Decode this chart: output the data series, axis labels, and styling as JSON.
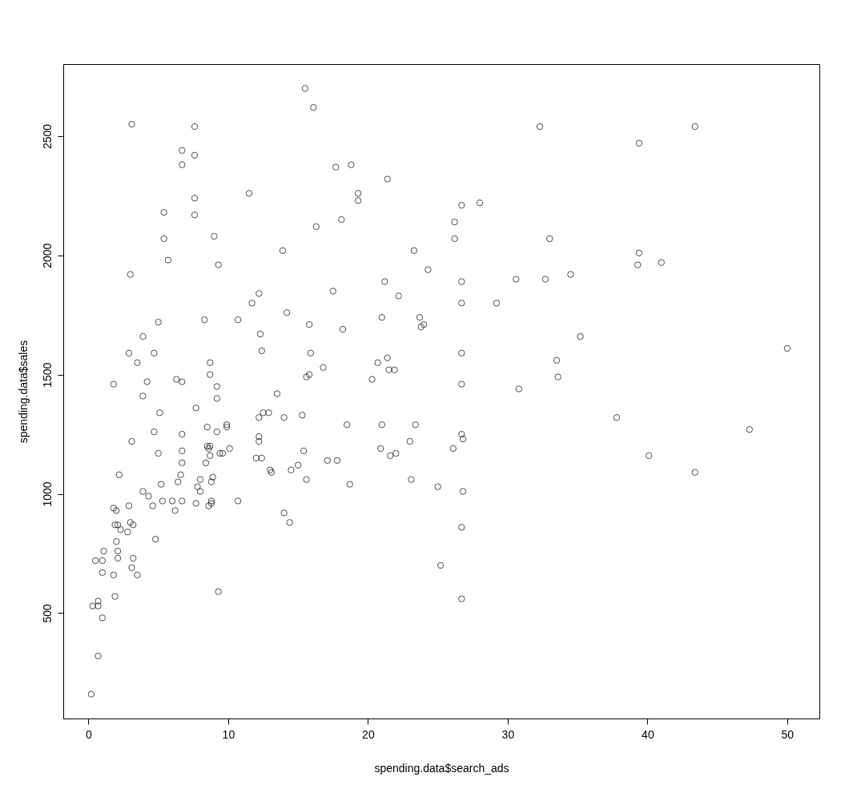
{
  "chart_data": {
    "type": "scatter",
    "xlabel": "spending.data$search_ads",
    "ylabel": "spending.data$sales",
    "marker": "circle",
    "grid": false,
    "xlim": [
      -1.8,
      52.3
    ],
    "ylim": [
      58,
      2802
    ],
    "xticks": [
      0,
      10,
      20,
      30,
      40,
      50
    ],
    "yticks": [
      500,
      1000,
      1500,
      2000,
      2500
    ],
    "series": [
      {
        "color": "#000000",
        "x": [
          0.2,
          0.3,
          0.7,
          0.7,
          0.5,
          0.7,
          1.0,
          1.0,
          1.1,
          1.0,
          1.8,
          1.8,
          1.9,
          1.8,
          1.9,
          2.0,
          2.1,
          2.0,
          2.1,
          2.1,
          2.3,
          2.2,
          2.8,
          2.9,
          2.9,
          3.0,
          3.2,
          3.1,
          3.2,
          3.1,
          3.0,
          3.1,
          3.5,
          3.5,
          3.9,
          3.9,
          3.9,
          4.2,
          4.3,
          4.6,
          4.7,
          4.7,
          4.8,
          5.0,
          5.0,
          5.1,
          5.2,
          5.3,
          5.4,
          5.4,
          5.7,
          6.0,
          6.2,
          6.4,
          6.3,
          6.6,
          6.7,
          6.7,
          6.7,
          6.7,
          6.7,
          6.7,
          6.7,
          7.6,
          7.6,
          7.6,
          7.6,
          7.7,
          7.7,
          7.8,
          8.0,
          8.0,
          8.3,
          8.4,
          8.5,
          8.5,
          8.6,
          8.7,
          8.7,
          8.7,
          8.7,
          8.6,
          8.8,
          8.8,
          8.8,
          8.9,
          9.0,
          9.2,
          9.2,
          9.2,
          9.3,
          9.3,
          9.4,
          9.6,
          9.9,
          9.9,
          10.1,
          10.7,
          10.7,
          11.5,
          11.7,
          12.0,
          12.2,
          12.2,
          12.2,
          12.2,
          12.3,
          12.4,
          12.4,
          12.5,
          12.9,
          13.0,
          13.1,
          13.5,
          13.9,
          14.0,
          14.0,
          14.2,
          14.4,
          14.5,
          15.0,
          15.3,
          15.4,
          15.5,
          15.6,
          15.6,
          15.8,
          15.8,
          15.9,
          16.1,
          16.3,
          16.8,
          17.1,
          17.5,
          17.7,
          17.8,
          18.1,
          18.2,
          18.5,
          18.7,
          18.8,
          19.3,
          19.3,
          20.3,
          20.7,
          20.9,
          21.0,
          21.0,
          21.2,
          21.4,
          21.4,
          21.5,
          21.6,
          21.9,
          22.0,
          22.2,
          23.0,
          23.1,
          23.3,
          23.4,
          23.7,
          23.8,
          24.0,
          24.3,
          25.0,
          25.2,
          26.1,
          26.2,
          26.2,
          26.7,
          26.7,
          26.7,
          26.7,
          26.7,
          26.7,
          26.8,
          26.8,
          26.7,
          26.7,
          28.0,
          29.2,
          30.6,
          30.8,
          32.3,
          32.7,
          33.0,
          33.5,
          33.6,
          34.5,
          35.2,
          37.8,
          39.4,
          39.4,
          39.3,
          40.1,
          41.0,
          43.4,
          43.4,
          47.3,
          50.0
        ],
        "values": [
          160,
          530,
          530,
          550,
          720,
          320,
          480,
          720,
          760,
          670,
          940,
          660,
          570,
          1460,
          870,
          930,
          870,
          800,
          760,
          730,
          850,
          1080,
          840,
          950,
          1590,
          880,
          870,
          690,
          730,
          1220,
          1920,
          2550,
          660,
          1550,
          1010,
          1410,
          1660,
          1470,
          990,
          950,
          1590,
          1260,
          810,
          1170,
          1720,
          1340,
          1040,
          970,
          2070,
          2180,
          1980,
          970,
          930,
          1050,
          1480,
          1080,
          1130,
          1180,
          1250,
          1470,
          970,
          2380,
          2440,
          2420,
          2540,
          2240,
          2170,
          1360,
          960,
          1030,
          1010,
          1060,
          1730,
          1130,
          1280,
          1200,
          1190,
          1160,
          1200,
          1550,
          1500,
          950,
          960,
          970,
          1050,
          1070,
          2080,
          1450,
          1400,
          1260,
          1960,
          590,
          1170,
          1170,
          1290,
          1280,
          1190,
          970,
          1730,
          2260,
          1800,
          1150,
          1220,
          1320,
          1240,
          1840,
          1670,
          1600,
          1150,
          1340,
          1340,
          1100,
          1090,
          1420,
          2020,
          920,
          1320,
          1760,
          880,
          1100,
          1120,
          1330,
          1180,
          2700,
          1060,
          1490,
          1500,
          1710,
          1590,
          2620,
          2120,
          1530,
          1140,
          1850,
          2370,
          1140,
          2150,
          1690,
          1290,
          1040,
          2380,
          2260,
          2230,
          1480,
          1550,
          1190,
          1290,
          1740,
          1890,
          2320,
          1570,
          1520,
          1160,
          1520,
          1170,
          1830,
          1220,
          1060,
          2020,
          1290,
          1740,
          1700,
          1710,
          1940,
          1030,
          700,
          1190,
          2140,
          2070,
          2210,
          1890,
          1800,
          1590,
          1460,
          1250,
          1230,
          1010,
          860,
          560,
          2220,
          1800,
          1900,
          1440,
          2540,
          1900,
          2070,
          1560,
          1490,
          1920,
          1660,
          1320,
          2470,
          2010,
          1960,
          1160,
          1970,
          2540,
          1090,
          1270,
          1610
        ]
      }
    ]
  }
}
